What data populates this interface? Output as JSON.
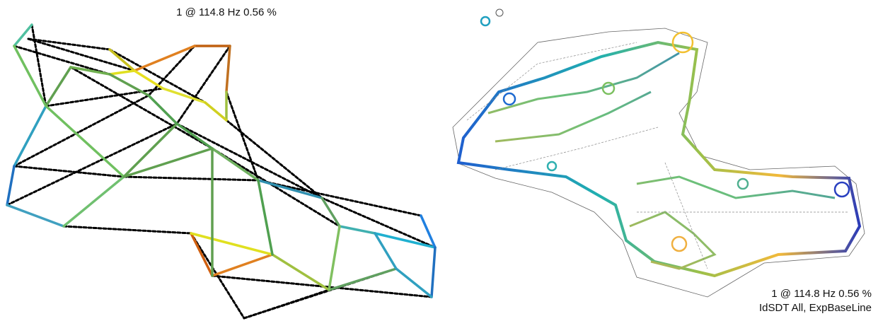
{
  "left_view": {
    "title": "1 @ 114.8 Hz 0.56 %"
  },
  "right_view": {
    "label_lines": [
      "1 @ 114.8 Hz 0.56 %",
      "IdSDT All, ExpBaseLine"
    ]
  }
}
